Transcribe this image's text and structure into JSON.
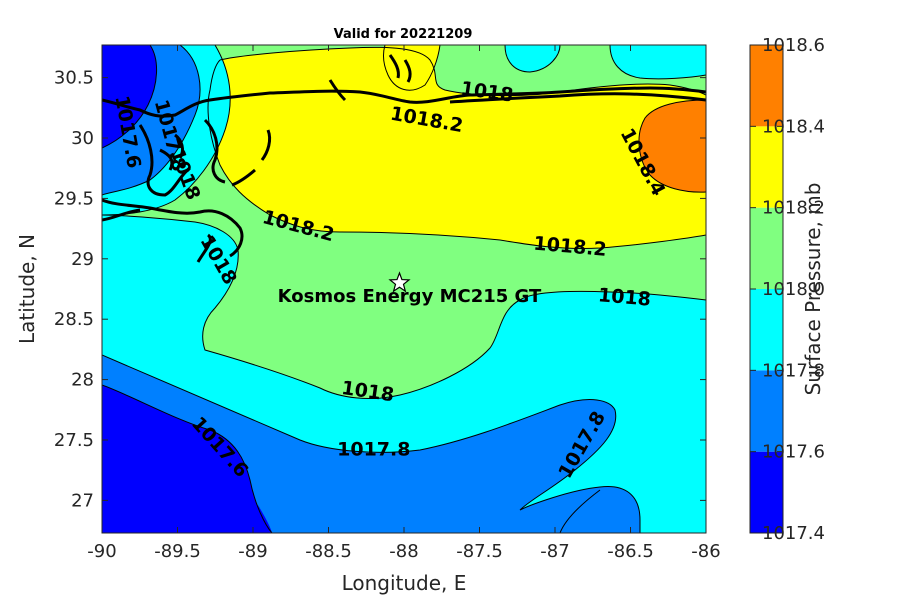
{
  "chart_data": {
    "type": "contour-map",
    "title": "Valid for 20221209",
    "xlabel": "Longitude, E",
    "ylabel": "Latitude, N",
    "xlim": [
      -90,
      -86
    ],
    "ylim": [
      26.73,
      30.77
    ],
    "x_ticks": [
      -90,
      -89.5,
      -89,
      -88.5,
      -88,
      -87.5,
      -87,
      -86.5,
      -86
    ],
    "x_tick_labels": [
      "-90",
      "-89.5",
      "-89",
      "-88.5",
      "-88",
      "-87.5",
      "-87",
      "-86.5",
      "-86"
    ],
    "y_ticks": [
      27,
      27.5,
      28,
      28.5,
      29,
      29.5,
      30,
      30.5
    ],
    "y_tick_labels": [
      "27",
      "27.5",
      "28",
      "28.5",
      "29",
      "29.5",
      "30",
      "30.5"
    ],
    "colorbar": {
      "label": "Surface Pressure, mb",
      "range": [
        1017.4,
        1018.6
      ],
      "ticks": [
        "1018.6",
        "1018.4",
        "1018.2",
        "1018.0",
        "1017.8",
        "1017.6",
        "1017.4"
      ],
      "levels": [
        {
          "from": 1017.4,
          "to": 1017.6,
          "color": "#0000ff"
        },
        {
          "from": 1017.6,
          "to": 1017.8,
          "color": "#0080ff"
        },
        {
          "from": 1017.8,
          "to": 1018.0,
          "color": "#00ffff"
        },
        {
          "from": 1018.0,
          "to": 1018.2,
          "color": "#80ff80"
        },
        {
          "from": 1018.2,
          "to": 1018.4,
          "color": "#ffff00"
        },
        {
          "from": 1018.4,
          "to": 1018.6,
          "color": "#ff8000"
        }
      ]
    },
    "contour_labels": [
      {
        "text": "1018.2",
        "lon": -87.85,
        "lat": 30.15,
        "angle": 10
      },
      {
        "text": "1018.2",
        "lon": -88.7,
        "lat": 29.27,
        "angle": 15
      },
      {
        "text": "1018.2",
        "lon": -86.9,
        "lat": 29.1,
        "angle": 5
      },
      {
        "text": "1018.4",
        "lon": -86.42,
        "lat": 29.8,
        "angle": 62
      },
      {
        "text": "1018",
        "lon": -89.23,
        "lat": 28.99,
        "angle": 60
      },
      {
        "text": "1018",
        "lon": -86.54,
        "lat": 28.68,
        "angle": 5
      },
      {
        "text": "1018",
        "lon": -88.24,
        "lat": 27.9,
        "angle": 8
      },
      {
        "text": "1017.8",
        "lon": -88.2,
        "lat": 27.42,
        "angle": 0
      },
      {
        "text": "1017.8",
        "lon": -86.82,
        "lat": 27.46,
        "angle": -60
      },
      {
        "text": "1017.6",
        "lon": -89.22,
        "lat": 27.44,
        "angle": 48
      },
      {
        "text": "1017.6",
        "lon": -89.83,
        "lat": 30.05,
        "angle": 80
      },
      {
        "text": "1017.8",
        "lon": -89.55,
        "lat": 30.02,
        "angle": 75
      },
      {
        "text": "1018",
        "lon": -89.45,
        "lat": 29.7,
        "angle": 70
      },
      {
        "text": "1018",
        "lon": -87.45,
        "lat": 30.38,
        "angle": 8
      }
    ],
    "site": {
      "name": "Kosmos Energy MC215 GT",
      "lon": -88.03,
      "lat": 28.8
    }
  }
}
